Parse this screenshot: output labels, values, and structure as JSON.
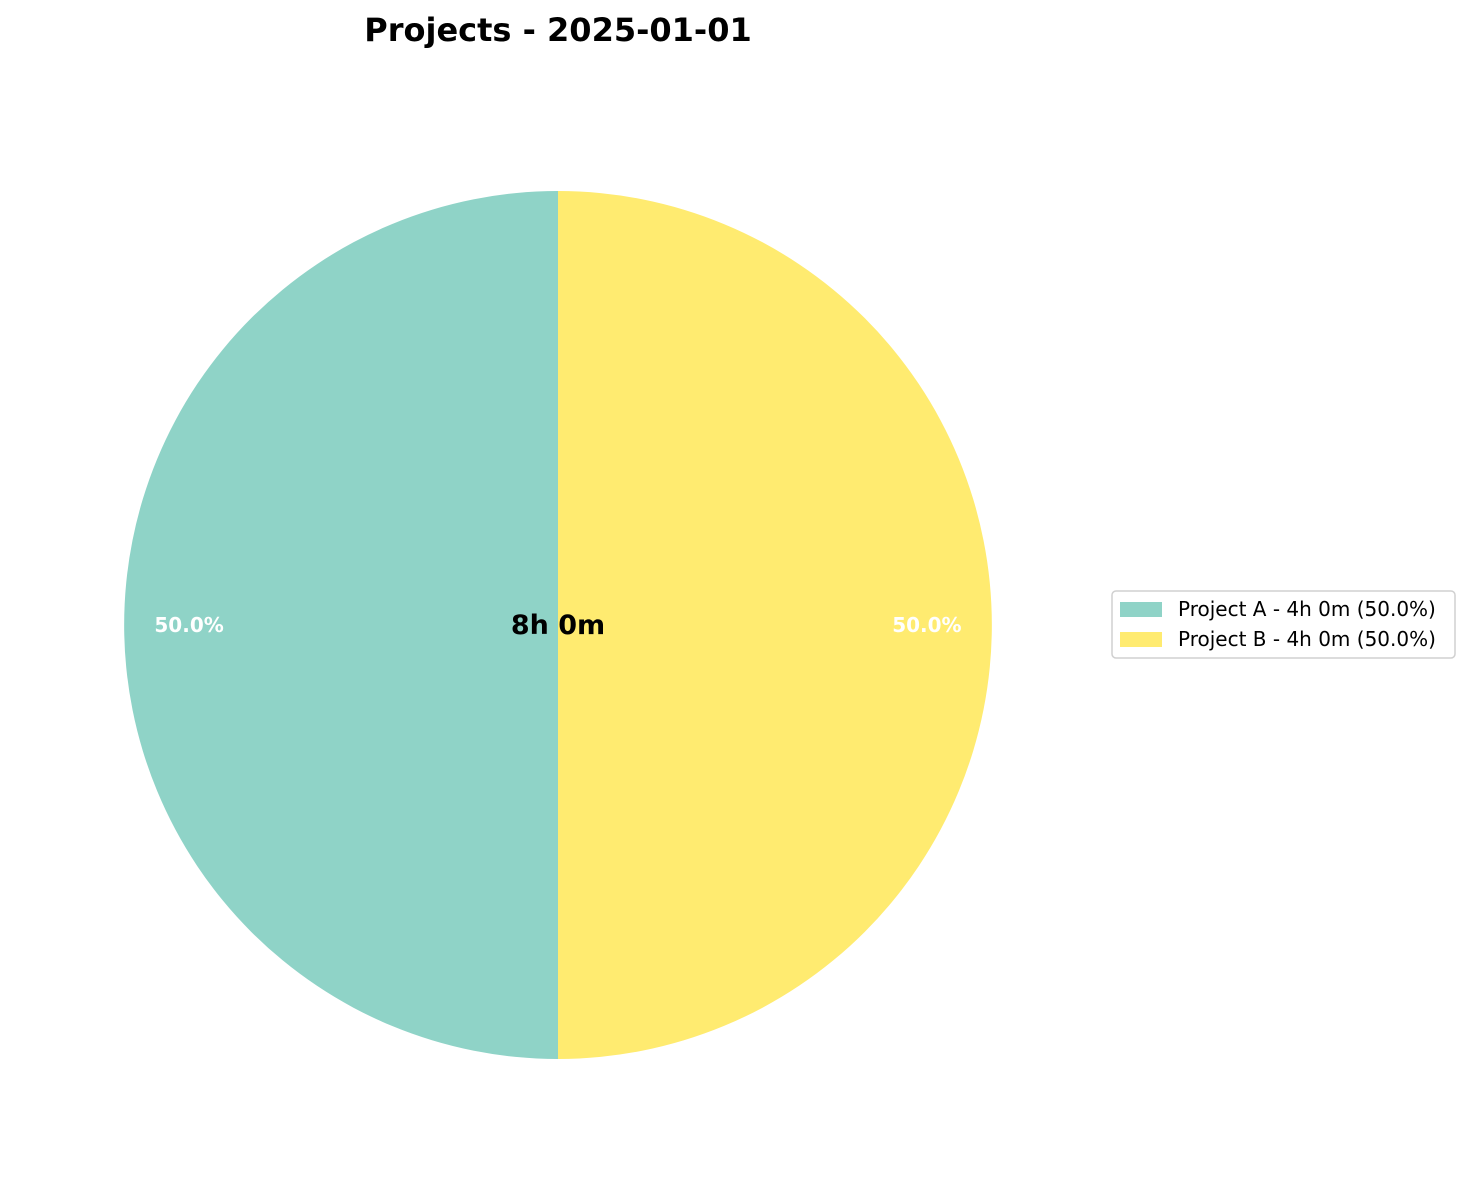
{
  "chart_data": {
    "type": "pie",
    "title": "Projects - 2025-01-01",
    "center_label": "8h 0m",
    "slices": [
      {
        "name": "Project A",
        "value": 50.0,
        "value_label": "50.0%",
        "legend_label": "Project A - 4h 0m (50.0%)",
        "color": "#8fd3c7"
      },
      {
        "name": "Project B",
        "value": 50.0,
        "value_label": "50.0%",
        "legend_label": "Project B - 4h 0m (50.0%)",
        "color": "#ffeb70"
      }
    ],
    "legend_position": "right",
    "start_angle": "top",
    "direction": "counterclockwise"
  }
}
